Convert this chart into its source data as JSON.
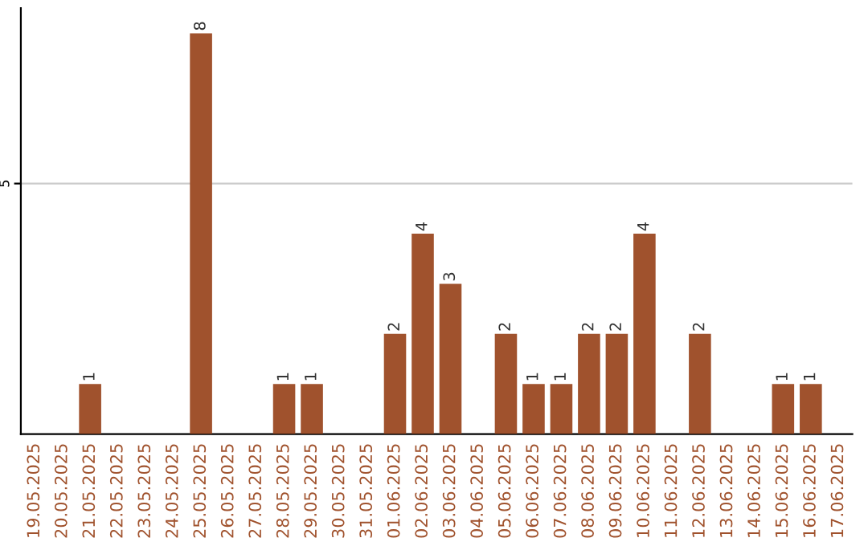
{
  "chart_data": {
    "type": "bar",
    "categories": [
      "19.05.2025",
      "20.05.2025",
      "21.05.2025",
      "22.05.2025",
      "23.05.2025",
      "24.05.2025",
      "25.05.2025",
      "26.05.2025",
      "27.05.2025",
      "28.05.2025",
      "29.05.2025",
      "30.05.2025",
      "31.05.2025",
      "01.06.2025",
      "02.06.2025",
      "03.06.2025",
      "04.06.2025",
      "05.06.2025",
      "06.06.2025",
      "07.06.2025",
      "08.06.2025",
      "09.06.2025",
      "10.06.2025",
      "11.06.2025",
      "12.06.2025",
      "13.06.2025",
      "14.06.2025",
      "15.06.2025",
      "16.06.2025",
      "17.06.2025"
    ],
    "values": [
      0,
      0,
      1,
      0,
      0,
      0,
      8,
      0,
      0,
      1,
      1,
      0,
      0,
      2,
      4,
      3,
      0,
      2,
      1,
      1,
      2,
      2,
      4,
      0,
      2,
      0,
      0,
      1,
      1,
      0
    ],
    "value_labels": [
      null,
      null,
      "1",
      null,
      null,
      null,
      "8",
      null,
      null,
      "1",
      "1",
      null,
      null,
      "2",
      "4",
      "3",
      null,
      "2",
      "1",
      "1",
      "2",
      "2",
      "4",
      null,
      "2",
      null,
      null,
      "1",
      "1",
      null
    ],
    "color": "#a0522d",
    "ylim": [
      0,
      8.5
    ],
    "yticks": [
      5
    ],
    "grid": "y",
    "legend": false
  }
}
